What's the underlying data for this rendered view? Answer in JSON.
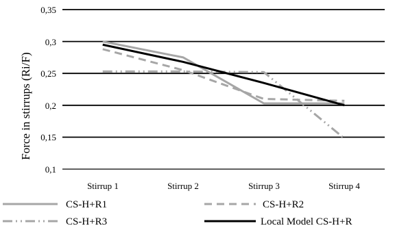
{
  "chart_data": {
    "type": "line",
    "categories": [
      "Stirrup 1",
      "Stirrup 2",
      "Stirrup 3",
      "Stirrup 4"
    ],
    "ylabel": "Force in stirrups (Ri/F)",
    "xlabel": "",
    "ylim": [
      0.1,
      0.35
    ],
    "yticks": [
      "0,1",
      "0,15",
      "0,2",
      "0,25",
      "0,3",
      "0,35"
    ],
    "grid": "horizontal",
    "legend_position": "bottom",
    "series": [
      {
        "name": "CS-H+R1",
        "values": [
          0.3,
          0.275,
          0.203,
          0.203
        ],
        "color": "#a6a6a6",
        "dash": "solid"
      },
      {
        "name": "CS-H+R2",
        "values": [
          0.288,
          0.255,
          0.21,
          0.207
        ],
        "color": "#a6a6a6",
        "dash": "dash"
      },
      {
        "name": "CS-H+R3",
        "values": [
          0.253,
          0.253,
          0.252,
          0.148
        ],
        "color": "#a6a6a6",
        "dash": "dashdotdot"
      },
      {
        "name": "Local Model CS-H+R",
        "values": [
          0.295,
          0.268,
          0.235,
          0.2
        ],
        "color": "#000000",
        "dash": "solid"
      }
    ]
  }
}
